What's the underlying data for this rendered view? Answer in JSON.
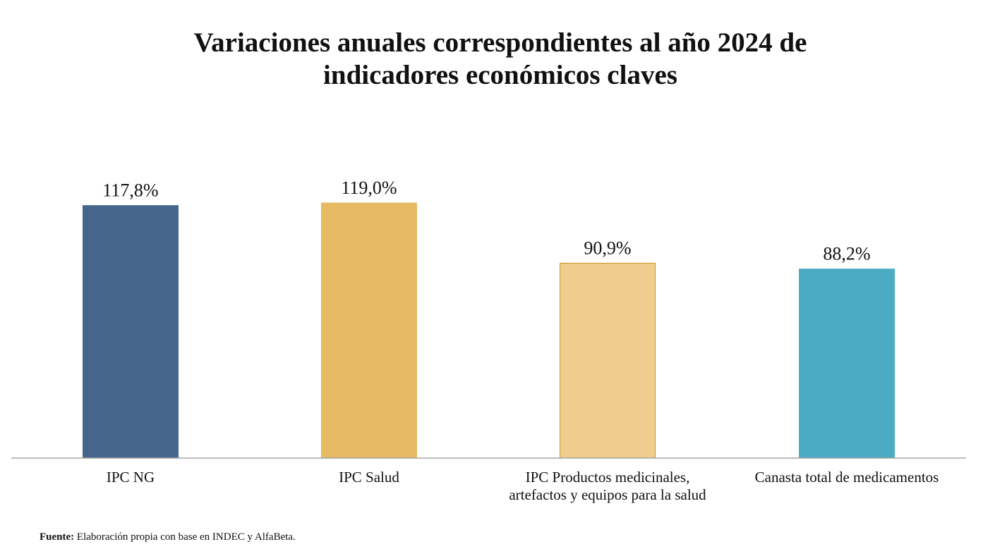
{
  "chart_data": {
    "type": "bar",
    "title_lines": [
      "Variaciones anuales correspondientes al año 2024 de",
      "indicadores económicos claves"
    ],
    "categories": [
      [
        "IPC NG"
      ],
      [
        "IPC Salud"
      ],
      [
        "IPC Productos medicinales,",
        "artefactos y equipos para la salud"
      ],
      [
        "Canasta total de medicamentos"
      ]
    ],
    "values": [
      117.8,
      119.0,
      90.9,
      88.2
    ],
    "value_labels": [
      "117,8%",
      "119,0%",
      "90,9%",
      "88,2%"
    ],
    "ylim": [
      0,
      119.0
    ],
    "grid": false,
    "legend": "none",
    "colors": [
      "#46658A",
      "#E6B963",
      "#EECD8E",
      "#4BABC4"
    ],
    "bar_borders": [
      "#46658A",
      "#E6B963",
      "#C9961F",
      "#4BABC4"
    ],
    "axis_color": "#A6A6A6"
  },
  "source": {
    "label": "Fuente:",
    "text": " Elaboración propia con base en INDEC y AlfaBeta."
  }
}
